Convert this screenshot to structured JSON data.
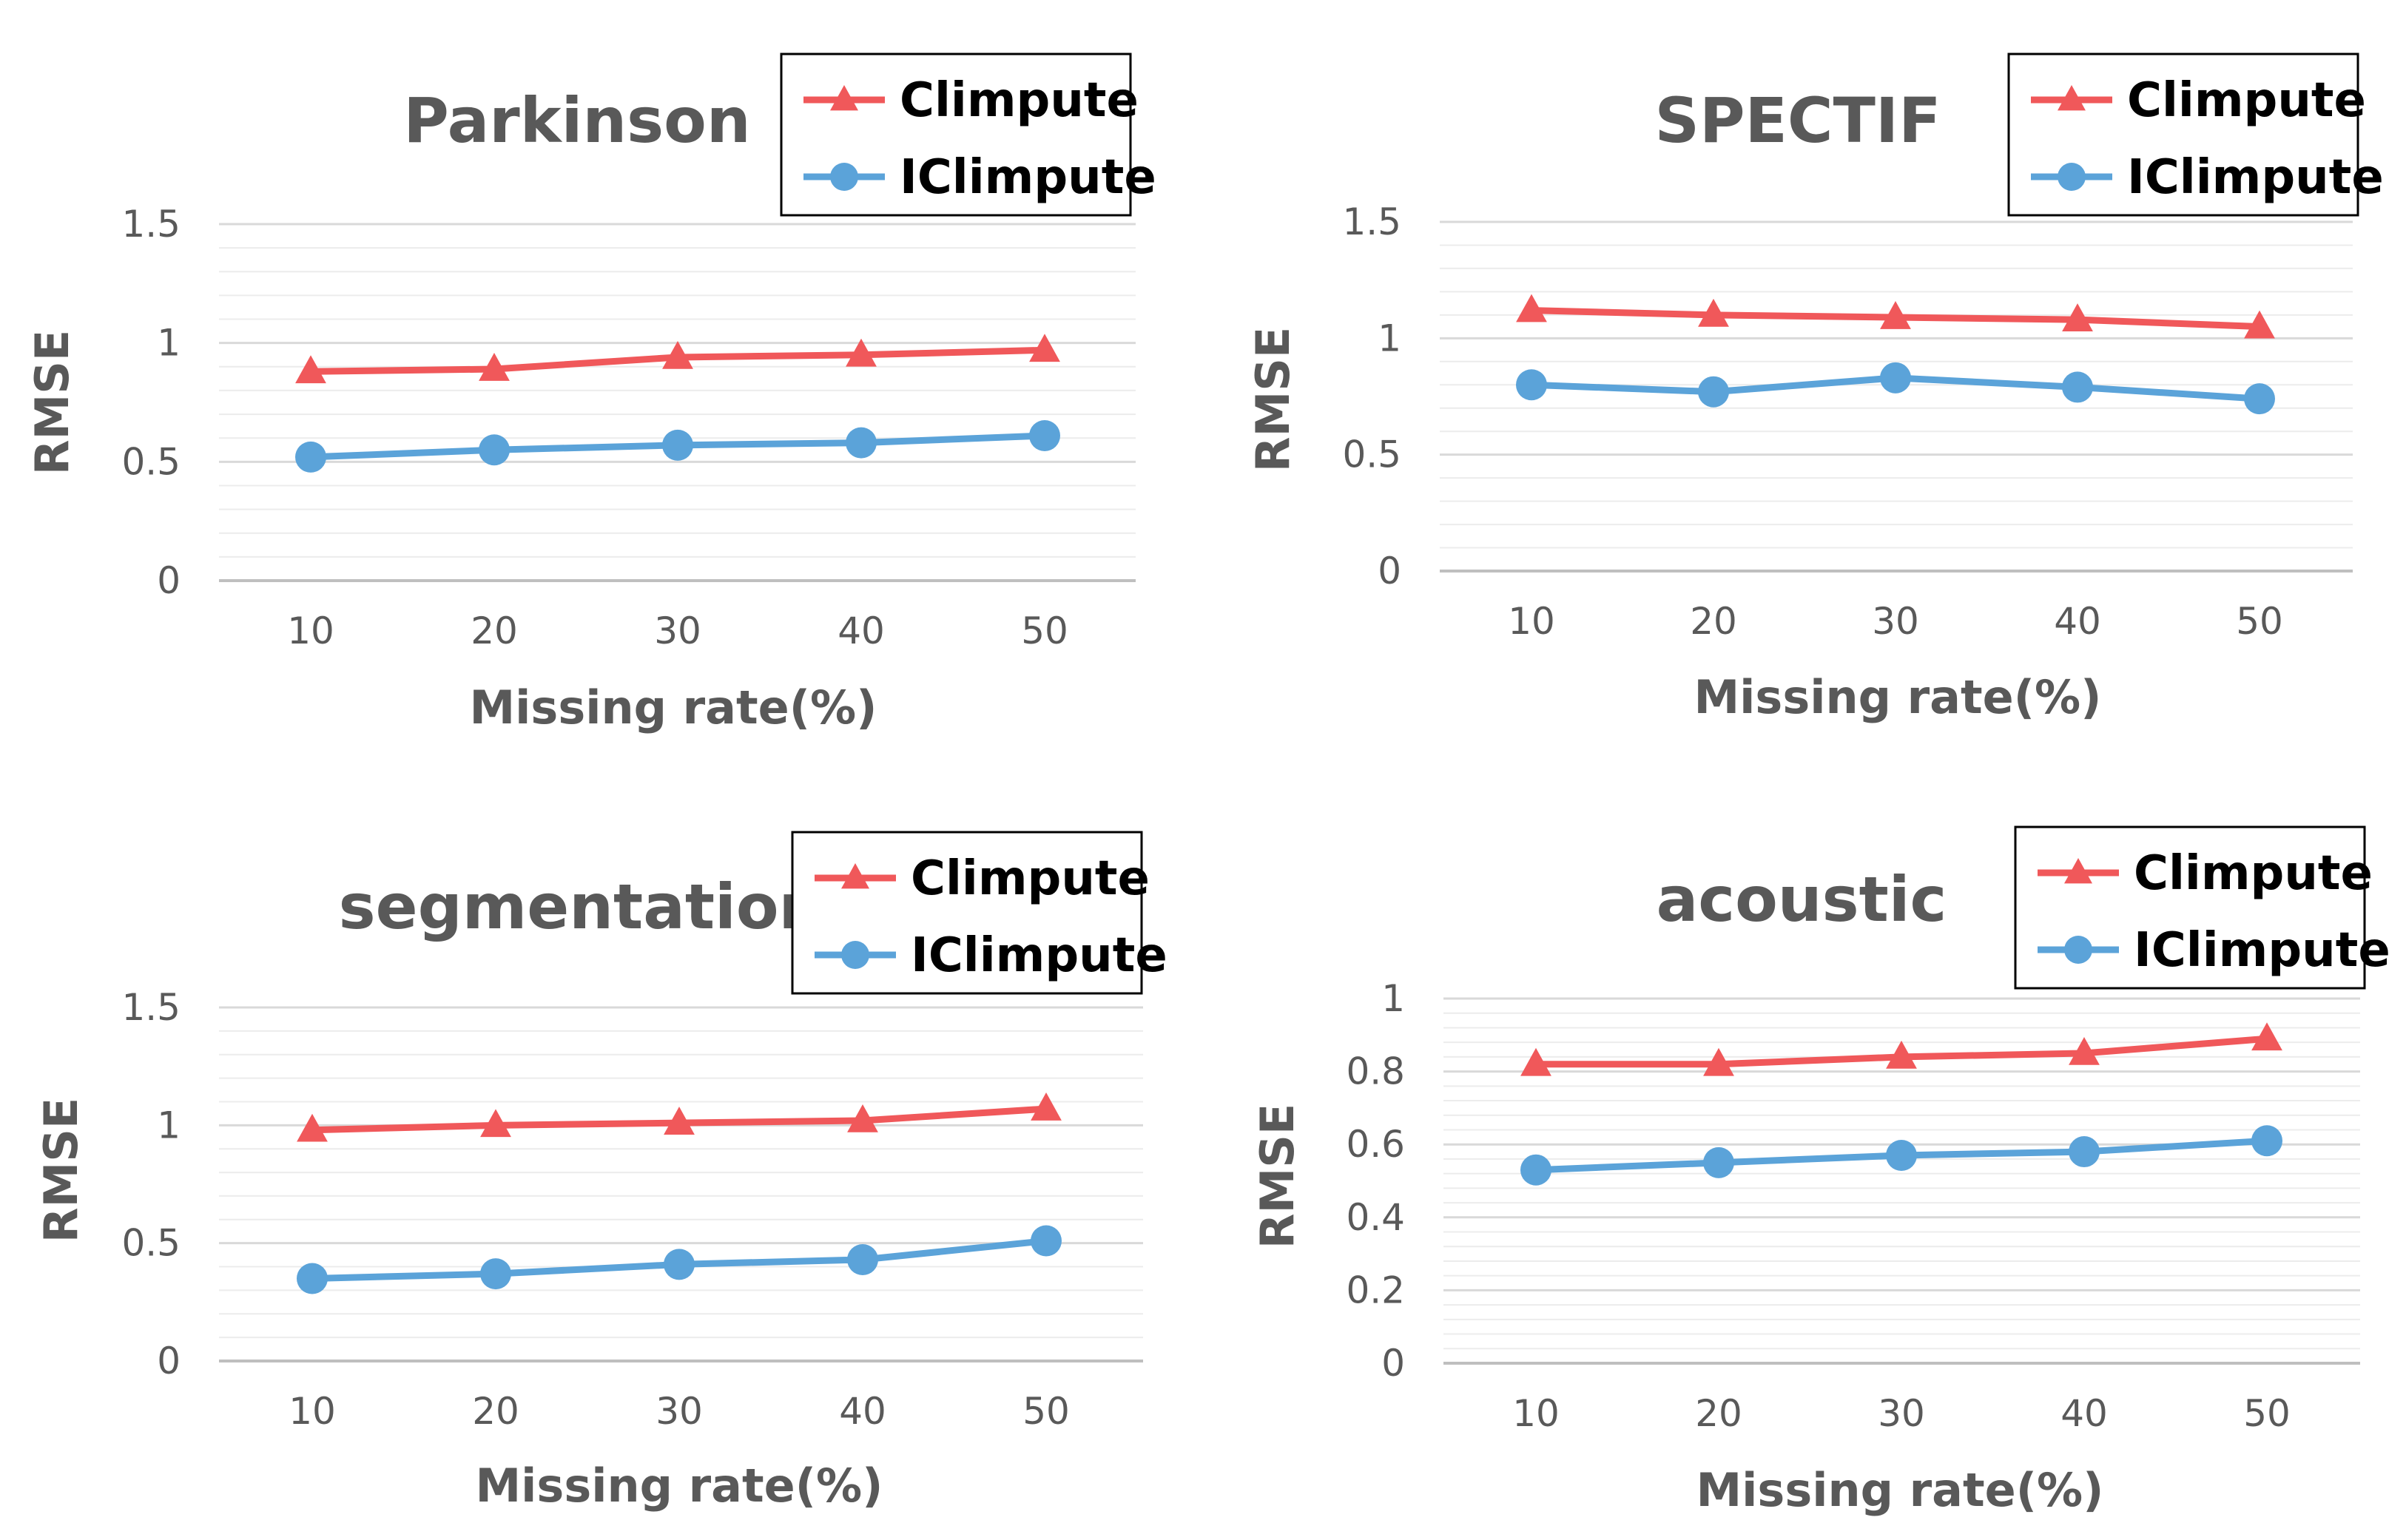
{
  "colors": {
    "climpute": "#f0585a",
    "iclimpute": "#5ba3d9",
    "grid": "#d9d9d9",
    "text": "#595959"
  },
  "chart_data": [
    {
      "type": "line",
      "title": "Parkinson",
      "xlabel": "Missing rate(%)",
      "ylabel": "RMSE",
      "categories": [
        "10",
        "20",
        "30",
        "40",
        "50"
      ],
      "ylim": [
        0,
        1.5
      ],
      "yticks": [
        "0",
        "0.5",
        "1",
        "1.5"
      ],
      "series": [
        {
          "name": "Climpute",
          "marker": "triangle",
          "values": [
            0.88,
            0.89,
            0.94,
            0.95,
            0.97
          ]
        },
        {
          "name": "IClimpute",
          "marker": "circle",
          "values": [
            0.52,
            0.55,
            0.57,
            0.58,
            0.61
          ]
        }
      ],
      "legend": "top-right"
    },
    {
      "type": "line",
      "title": "SPECTIF",
      "xlabel": "Missing rate(%)",
      "ylabel": "RMSE",
      "categories": [
        "10",
        "20",
        "30",
        "40",
        "50"
      ],
      "ylim": [
        0,
        1.5
      ],
      "yticks": [
        "0",
        "0.5",
        "1",
        "1.5"
      ],
      "series": [
        {
          "name": "Climpute",
          "marker": "triangle",
          "values": [
            1.12,
            1.1,
            1.09,
            1.08,
            1.05
          ]
        },
        {
          "name": "IClimpute",
          "marker": "circle",
          "values": [
            0.8,
            0.77,
            0.83,
            0.79,
            0.74
          ]
        }
      ],
      "legend": "top-right"
    },
    {
      "type": "line",
      "title": "segmentation",
      "xlabel": "Missing rate(%)",
      "ylabel": "RMSE",
      "categories": [
        "10",
        "20",
        "30",
        "40",
        "50"
      ],
      "ylim": [
        0,
        1.5
      ],
      "yticks": [
        "0",
        "0.5",
        "1",
        "1.5"
      ],
      "series": [
        {
          "name": "Climpute",
          "marker": "triangle",
          "values": [
            0.98,
            1.0,
            1.01,
            1.02,
            1.07
          ]
        },
        {
          "name": "IClimpute",
          "marker": "circle",
          "values": [
            0.35,
            0.37,
            0.41,
            0.43,
            0.51
          ]
        }
      ],
      "legend": "top-right"
    },
    {
      "type": "line",
      "title": "acoustic",
      "xlabel": "Missing rate(%)",
      "ylabel": "RMSE",
      "categories": [
        "10",
        "20",
        "30",
        "40",
        "50"
      ],
      "ylim": [
        0,
        1
      ],
      "yticks": [
        "0",
        "0.2",
        "0.4",
        "0.6",
        "0.8",
        "1"
      ],
      "series": [
        {
          "name": "Climpute",
          "marker": "triangle",
          "values": [
            0.82,
            0.82,
            0.84,
            0.85,
            0.89
          ]
        },
        {
          "name": "IClimpute",
          "marker": "circle",
          "values": [
            0.53,
            0.55,
            0.57,
            0.58,
            0.61
          ]
        }
      ],
      "legend": "top-right"
    }
  ]
}
